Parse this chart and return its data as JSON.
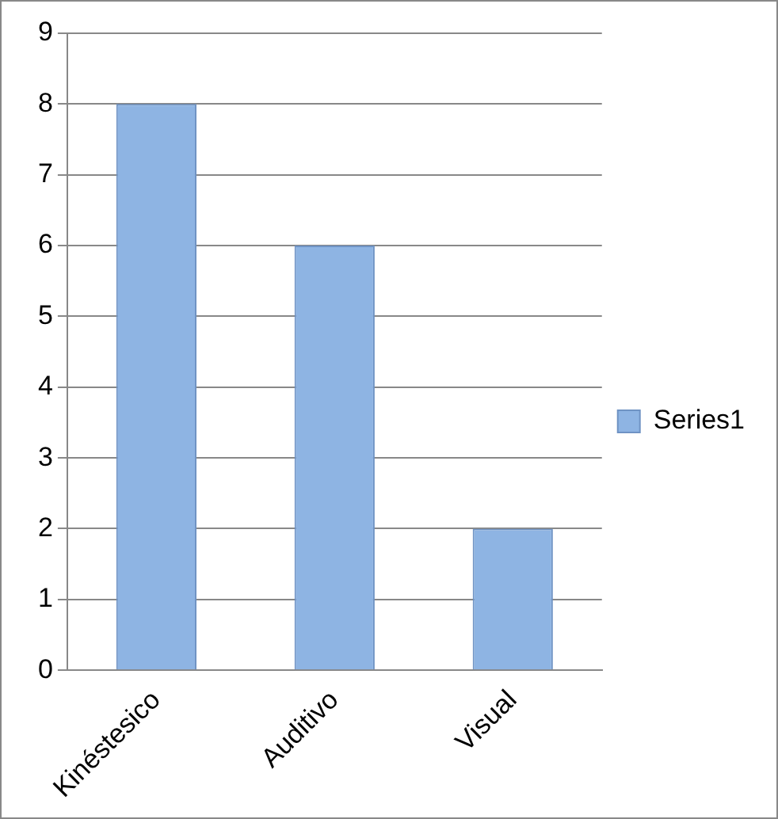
{
  "chart_data": {
    "type": "bar",
    "categories": [
      "Kinéstesico",
      "Auditivo",
      "Visual"
    ],
    "series": [
      {
        "name": "Series1",
        "color": "#8eb4e3",
        "values": [
          8,
          6,
          2
        ]
      }
    ],
    "ylim": [
      0,
      9
    ],
    "yticks": [
      0,
      1,
      2,
      3,
      4,
      5,
      6,
      7,
      8,
      9
    ],
    "grid": "y",
    "legend": "right"
  }
}
